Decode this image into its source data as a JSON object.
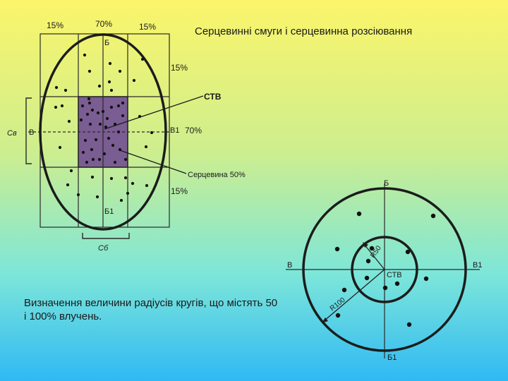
{
  "title": "Серцевинні смуги і серцевинна розсіювання",
  "caption": "Визначення величини радіусів кругів, що містять 50 і 100% влучень.",
  "left_diagram": {
    "top_labels": [
      "15%",
      "70%",
      "15%"
    ],
    "right_labels": [
      "15%",
      "70%",
      "15%"
    ],
    "direction_top": "Б",
    "direction_bottom": "Б1",
    "direction_left": "В",
    "direction_right": "В1",
    "left_bracket": "Св",
    "bottom_bracket": "Сб",
    "stv_label": "СТВ",
    "core_label": "Серцевина 50%"
  },
  "right_diagram": {
    "direction_top": "Б",
    "direction_bottom": "Б1",
    "direction_left": "В",
    "direction_right": "В1",
    "center_label": "СТВ",
    "r50_label": "R50",
    "r100_label": "R100"
  },
  "colors": {
    "core_fill": "#7a5d92",
    "line": "#1c1c1c",
    "background_top": "#fbf56a",
    "background_bottom": "#2fb9f4"
  }
}
